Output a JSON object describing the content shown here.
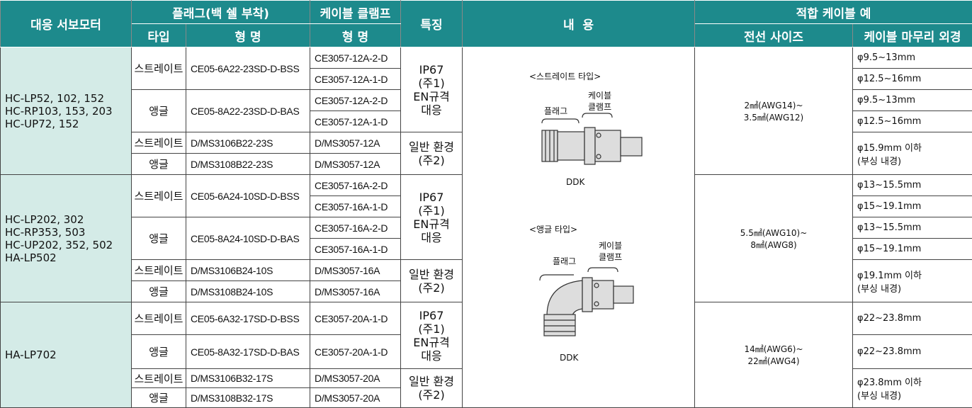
{
  "header": {
    "motor": "대응 서보모터",
    "plug": "플래그(백 쉘 부착)",
    "clamp": "케이블 클램프",
    "feature": "특징",
    "content": "내  용",
    "cable": "적합 케이블 예",
    "type": "타입",
    "plug_model": "형 명",
    "clamp_model": "형 명",
    "wire": "전선 사이즈",
    "finish": "케이블 마무리 외경"
  },
  "content": {
    "straight_title": "<스트레이트 타입>",
    "straight_plug": "플래그",
    "straight_clamp": [
      "케이블",
      "클램프"
    ],
    "straight_maker": "DDK",
    "angle_title": "<앵글 타입>",
    "angle_plug": "플래그",
    "angle_clamp": [
      "케이블",
      "클램프"
    ],
    "angle_maker": "DDK"
  },
  "groups": [
    {
      "motors": [
        "HC-LP52, 102, 152",
        "HC-RP103, 153, 203",
        "HC-UP72, 152"
      ],
      "plugs": [
        {
          "type": "스트레이트",
          "model": "CE05-6A22-23SD-D-BSS",
          "clamps": [
            "CE3057-12A-2-D",
            "CE3057-12A-1-D"
          ]
        },
        {
          "type": "앵글",
          "model": "CE05-8A22-23SD-D-BAS",
          "clamps": [
            "CE3057-12A-2-D",
            "CE3057-12A-1-D"
          ]
        },
        {
          "type": "스트레이트",
          "model": "D/MS3106B22-23S",
          "clamps": [
            "D/MS3057-12A"
          ]
        },
        {
          "type": "앵글",
          "model": "D/MS3108B22-23S",
          "clamps": [
            "D/MS3057-12A"
          ]
        }
      ],
      "features": [
        [
          "IP67",
          "(주1)",
          "EN규격",
          "대응"
        ],
        [
          "일반 환경",
          "(주2)"
        ]
      ],
      "wire": [
        "2㎟(AWG14)~",
        "3.5㎟(AWG12)"
      ],
      "finish": [
        [
          "φ9.5~13mm"
        ],
        [
          "φ12.5~16mm"
        ],
        [
          "φ9.5~13mm"
        ],
        [
          "φ12.5~16mm"
        ],
        [
          "φ15.9mm 이하",
          "(부싱 내경)"
        ]
      ]
    },
    {
      "motors": [
        "HC-LP202, 302",
        "HC-RP353, 503",
        "HC-UP202, 352, 502",
        "HA-LP502"
      ],
      "plugs": [
        {
          "type": "스트레이트",
          "model": "CE05-6A24-10SD-D-BSS",
          "clamps": [
            "CE3057-16A-2-D",
            "CE3057-16A-1-D"
          ]
        },
        {
          "type": "앵글",
          "model": "CE05-8A24-10SD-D-BAS",
          "clamps": [
            "CE3057-16A-2-D",
            "CE3057-16A-1-D"
          ]
        },
        {
          "type": "스트레이트",
          "model": "D/MS3106B24-10S",
          "clamps": [
            "D/MS3057-16A"
          ]
        },
        {
          "type": "앵글",
          "model": "D/MS3108B24-10S",
          "clamps": [
            "D/MS3057-16A"
          ]
        }
      ],
      "features": [
        [
          "IP67",
          "(주1)",
          "EN규격",
          "대응"
        ],
        [
          "일반 환경",
          "(주2)"
        ]
      ],
      "wire": [
        "5.5㎟(AWG10)~",
        "8㎟(AWG8)"
      ],
      "finish": [
        [
          "φ13~15.5mm"
        ],
        [
          "φ15~19.1mm"
        ],
        [
          "φ13~15.5mm"
        ],
        [
          "φ15~19.1mm"
        ],
        [
          "φ19.1mm 이하",
          "(부싱 내경)"
        ]
      ]
    },
    {
      "motors": [
        "HA-LP702"
      ],
      "plugs": [
        {
          "type": "스트레이트",
          "model": "CE05-6A32-17SD-D-BSS",
          "clamps": [
            "CE3057-20A-1-D"
          ]
        },
        {
          "type": "앵글",
          "model": "CE05-8A32-17SD-D-BAS",
          "clamps": [
            "CE3057-20A-1-D"
          ]
        },
        {
          "type": "스트레이트",
          "model": "D/MS3106B32-17S",
          "clamps": [
            "D/MS3057-20A"
          ]
        },
        {
          "type": "앵글",
          "model": "D/MS3108B32-17S",
          "clamps": [
            "D/MS3057-20A"
          ]
        }
      ],
      "features": [
        [
          "IP67",
          "(주1)",
          "EN규격",
          "대응"
        ],
        [
          "일반 환경",
          "(주2)"
        ]
      ],
      "wire": [
        "14㎟(AWG6)~",
        "22㎟(AWG4)"
      ],
      "finish": [
        [
          "φ22~23.8mm"
        ],
        [
          "φ22~23.8mm"
        ],
        [
          "φ23.8mm 이하",
          "(부싱 내경)"
        ]
      ]
    }
  ]
}
